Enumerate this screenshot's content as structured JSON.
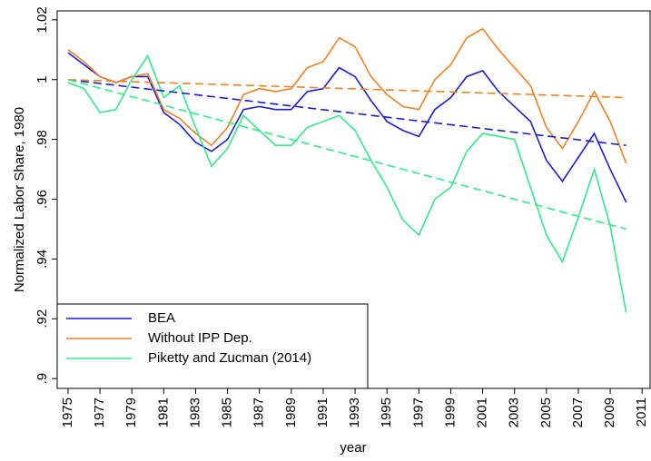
{
  "chart_data": {
    "type": "line",
    "x_label": "year",
    "y_label": "Normalized Labor Share, 1980",
    "x": [
      1975,
      1976,
      1977,
      1978,
      1979,
      1980,
      1981,
      1982,
      1983,
      1984,
      1985,
      1986,
      1987,
      1988,
      1989,
      1990,
      1991,
      1992,
      1993,
      1994,
      1995,
      1996,
      1997,
      1998,
      1999,
      2000,
      2001,
      2002,
      2003,
      2004,
      2005,
      2006,
      2007,
      2008,
      2009,
      2010
    ],
    "series": [
      {
        "name": "BEA",
        "color": "#1c1cd6",
        "values": [
          1.009,
          1.005,
          1.001,
          0.999,
          1.001,
          1.001,
          0.989,
          0.985,
          0.979,
          0.976,
          0.98,
          0.99,
          0.991,
          0.99,
          0.99,
          0.996,
          0.997,
          1.004,
          1.001,
          0.993,
          0.986,
          0.983,
          0.981,
          0.99,
          0.994,
          1.001,
          1.003,
          0.996,
          0.991,
          0.986,
          0.973,
          0.966,
          0.974,
          0.982,
          0.97,
          0.959
        ]
      },
      {
        "name": "Without IPP Dep.",
        "color": "#f08224",
        "values": [
          1.01,
          1.006,
          1.001,
          0.999,
          1.001,
          1.002,
          0.99,
          0.987,
          0.982,
          0.978,
          0.984,
          0.995,
          0.997,
          0.996,
          0.997,
          1.004,
          1.006,
          1.014,
          1.011,
          1.001,
          0.995,
          0.991,
          0.99,
          1.0,
          1.005,
          1.014,
          1.017,
          1.01,
          1.004,
          0.998,
          0.984,
          0.977,
          0.986,
          0.996,
          0.986,
          0.972
        ]
      },
      {
        "name": "Piketty and Zucman (2014)",
        "color": "#33ea8a",
        "values": [
          0.999,
          0.997,
          0.989,
          0.99,
          1.0,
          1.008,
          0.994,
          0.998,
          0.984,
          0.971,
          0.977,
          0.988,
          0.983,
          0.978,
          0.978,
          0.984,
          0.986,
          0.988,
          0.983,
          0.973,
          0.964,
          0.953,
          0.948,
          0.96,
          0.964,
          0.976,
          0.982,
          0.981,
          0.98,
          0.964,
          0.948,
          0.939,
          0.954,
          0.97,
          0.951,
          0.922
        ]
      },
      {
        "color": "#1c1cd6",
        "dashed": true,
        "x": [
          1975,
          2010
        ],
        "values": [
          1.0,
          0.978
        ]
      },
      {
        "color": "#f08224",
        "dashed": true,
        "x": [
          1975,
          2010
        ],
        "values": [
          1.0,
          0.994
        ]
      },
      {
        "color": "#33ea8a",
        "dashed": true,
        "x": [
          1975,
          2010
        ],
        "values": [
          1.0,
          0.95
        ]
      }
    ],
    "xlim": [
      1974.32,
      2011.5
    ],
    "xticks": [
      1975,
      1977,
      1979,
      1981,
      1983,
      1985,
      1987,
      1989,
      1991,
      1993,
      1995,
      1997,
      1999,
      2001,
      2003,
      2005,
      2007,
      2009,
      2011
    ],
    "ylim": [
      0.8967,
      1.023
    ],
    "yticks": [
      {
        "value": 0.9,
        "label": ".9"
      },
      {
        "value": 0.92,
        "label": ".92"
      },
      {
        "value": 0.94,
        "label": ".94"
      },
      {
        "value": 0.96,
        "label": ".96"
      },
      {
        "value": 0.98,
        "label": ".98"
      },
      1,
      1.02
    ],
    "legend": "lower left"
  }
}
